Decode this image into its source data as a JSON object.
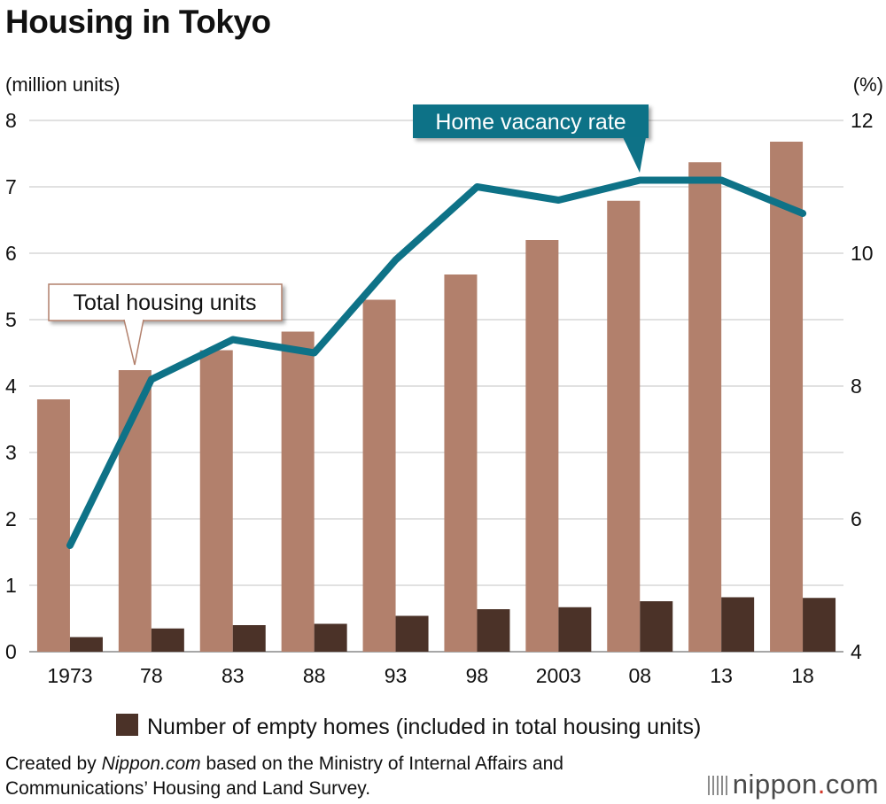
{
  "chart_data": {
    "type": "bar",
    "title": "Housing in Tokyo",
    "categories": [
      "1973",
      "78",
      "83",
      "88",
      "93",
      "98",
      "2003",
      "08",
      "13",
      "18"
    ],
    "left_axis": {
      "label": "(million units)",
      "range": [
        0,
        8
      ],
      "ticks": [
        "0",
        "1",
        "2",
        "3",
        "4",
        "5",
        "6",
        "7",
        "8"
      ]
    },
    "right_axis": {
      "label": "(%)",
      "range": [
        4,
        12
      ],
      "ticks": [
        "4",
        "6",
        "8",
        "10",
        "12"
      ]
    },
    "series": [
      {
        "name": "Total housing units",
        "type": "bar",
        "axis": "left",
        "color": "#b2806c",
        "values": [
          3.8,
          4.24,
          4.54,
          4.82,
          5.3,
          5.68,
          6.2,
          6.79,
          7.37,
          7.68
        ]
      },
      {
        "name": "Number of empty homes (included in total housing units)",
        "type": "bar",
        "axis": "left",
        "color": "#4b3228",
        "values": [
          0.22,
          0.35,
          0.4,
          0.42,
          0.54,
          0.64,
          0.67,
          0.76,
          0.82,
          0.81
        ]
      },
      {
        "name": "Home vacancy rate",
        "type": "line",
        "axis": "right",
        "color": "#0e7287",
        "values": [
          5.6,
          8.1,
          8.7,
          8.5,
          9.9,
          11.0,
          10.8,
          11.1,
          11.1,
          10.6
        ]
      }
    ],
    "callouts": {
      "total": "Total housing units",
      "vacancy": "Home vacancy rate"
    },
    "legend": {
      "label": "Number of empty homes (included in total housing units)",
      "position": "bottom"
    },
    "grid": true
  },
  "source": {
    "prefix": "Created by ",
    "site": "Nippon.com",
    "suffix": " based on the Ministry of Internal Affairs and Communications’ Housing and Land Survey."
  },
  "logo": {
    "text": "nippon",
    "dot": ".",
    "tld": "com"
  }
}
